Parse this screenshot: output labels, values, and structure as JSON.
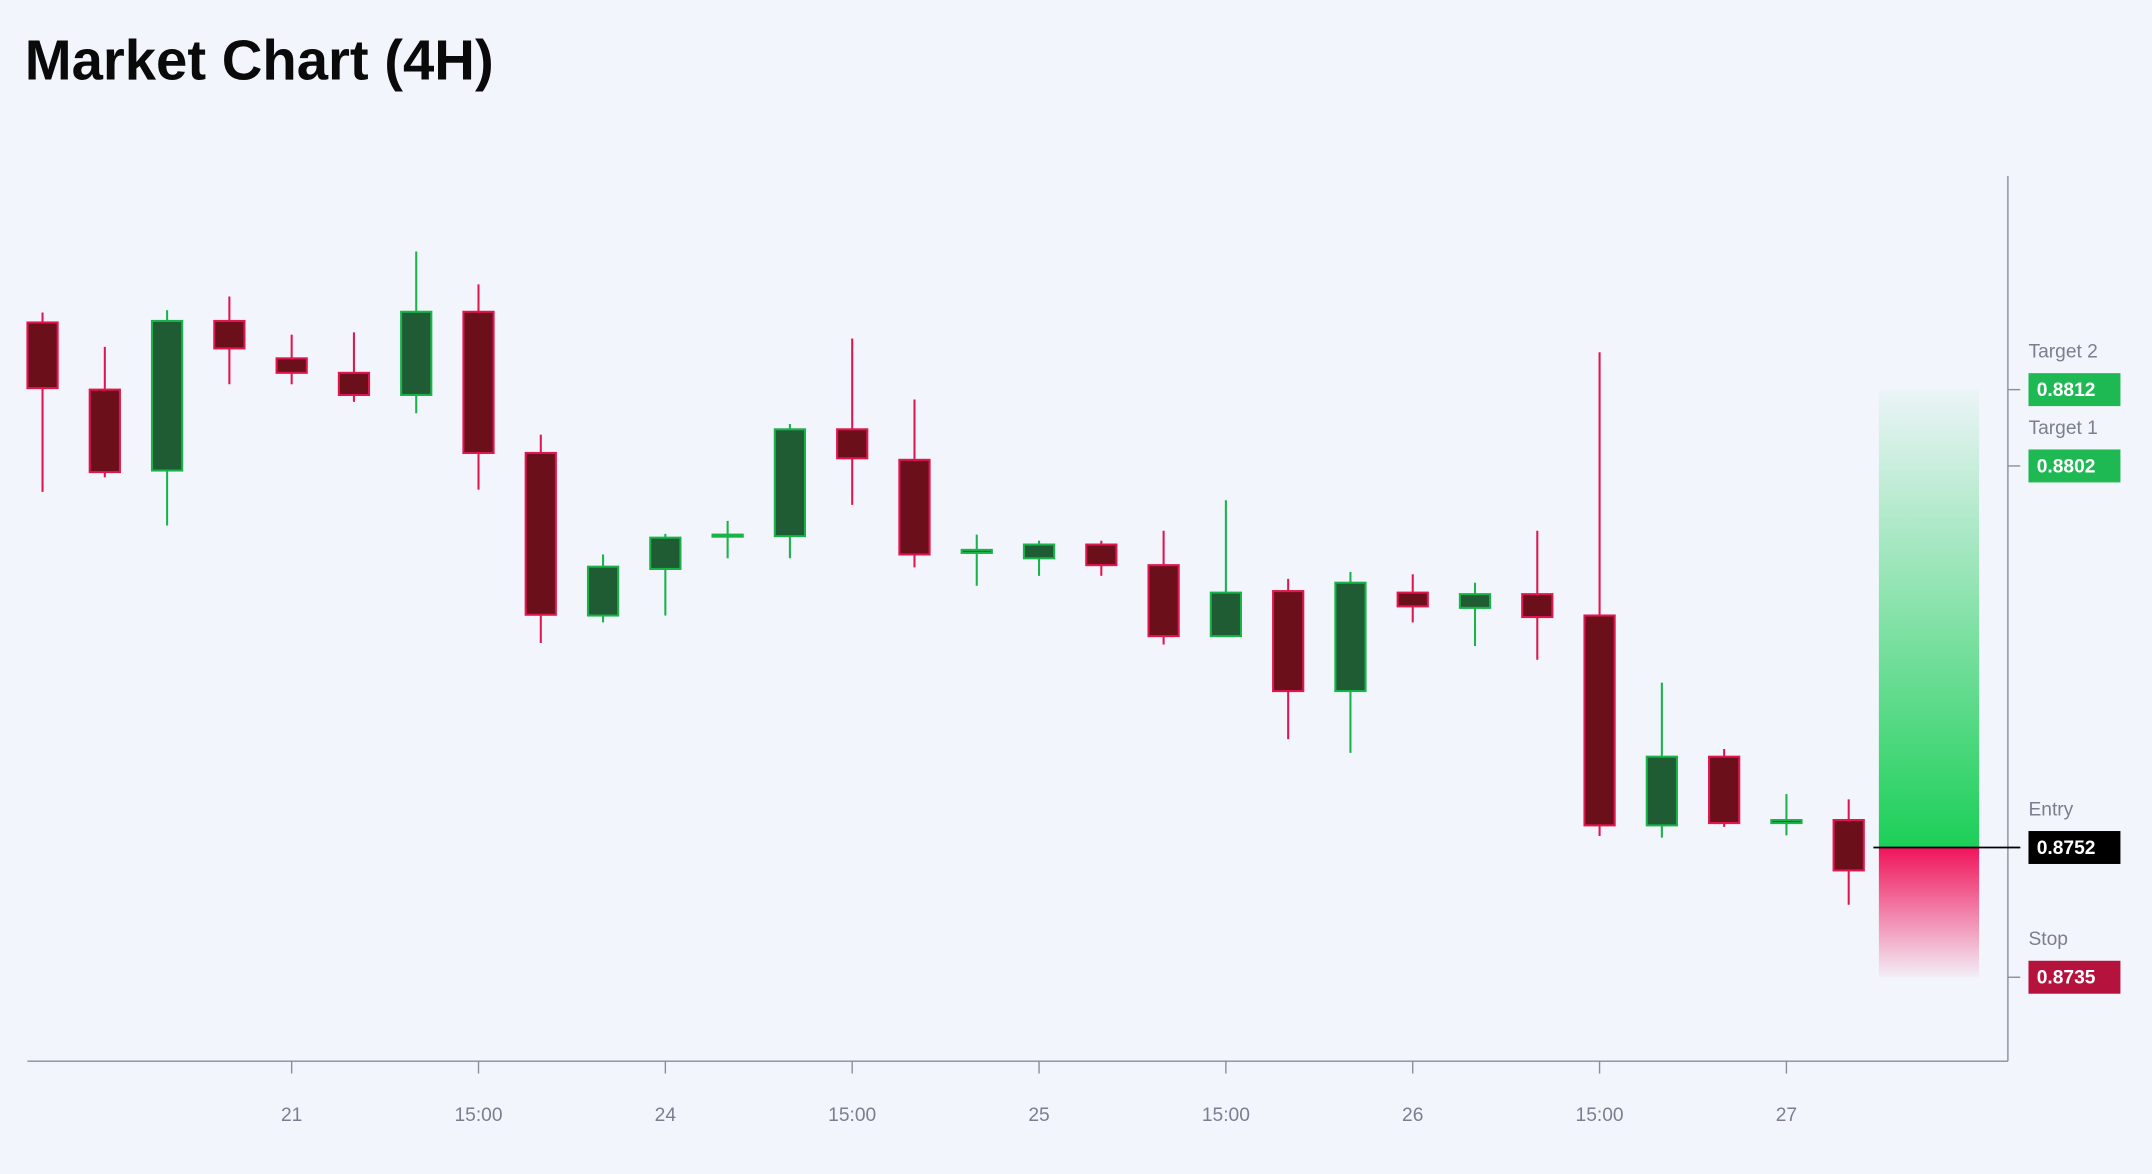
{
  "chart_data": {
    "type": "candlestick",
    "title": "Market Chart (4H)",
    "categories": [
      null,
      null,
      null,
      null,
      "21",
      null,
      null,
      "15:00",
      null,
      null,
      "24",
      null,
      null,
      "15:00",
      null,
      null,
      "25",
      null,
      null,
      "15:00",
      null,
      null,
      "26",
      null,
      null,
      "15:00",
      null,
      null,
      "27",
      null
    ],
    "open": [
      0.88208,
      0.8812,
      0.88014,
      0.8821,
      0.88161,
      0.88142,
      0.88113,
      0.88222,
      0.88037,
      0.87824,
      0.87885,
      0.87928,
      0.87928,
      0.88068,
      0.88028,
      0.87906,
      0.87899,
      0.87917,
      0.8789,
      0.87797,
      0.87856,
      0.87725,
      0.87854,
      0.87834,
      0.87852,
      0.87824,
      0.87549,
      0.87639,
      0.87552,
      0.87556
    ],
    "high": [
      0.88221,
      0.88176,
      0.88224,
      0.88242,
      0.88192,
      0.88195,
      0.88301,
      0.88258,
      0.88061,
      0.87904,
      0.87931,
      0.87948,
      0.88075,
      0.88187,
      0.88107,
      0.8793,
      0.87922,
      0.87922,
      0.87935,
      0.87975,
      0.87872,
      0.87881,
      0.87878,
      0.87867,
      0.87935,
      0.88169,
      0.87736,
      0.87649,
      0.8759,
      0.87583
    ],
    "low": [
      0.87986,
      0.88005,
      0.87942,
      0.88127,
      0.88127,
      0.88104,
      0.88089,
      0.87989,
      0.87788,
      0.87815,
      0.87824,
      0.87899,
      0.87899,
      0.87969,
      0.87887,
      0.87863,
      0.87876,
      0.87876,
      0.87786,
      0.87797,
      0.87662,
      0.87644,
      0.87815,
      0.87784,
      0.87766,
      0.87535,
      0.87533,
      0.87547,
      0.87536,
      0.87445
    ],
    "close": [
      0.88122,
      0.88012,
      0.8821,
      0.88174,
      0.88142,
      0.88113,
      0.88222,
      0.88037,
      0.87825,
      0.87888,
      0.87926,
      0.8793,
      0.88068,
      0.8803,
      0.87904,
      0.8791,
      0.87917,
      0.8789,
      0.87797,
      0.87854,
      0.87725,
      0.87867,
      0.87836,
      0.87852,
      0.87822,
      0.87549,
      0.87639,
      0.87552,
      0.87556,
      0.8749
    ],
    "up_color": "#19b34a",
    "up_fill": "#1f5c34",
    "down_color": "#e0174f",
    "down_fill": "#6b0f1a",
    "ylim": [
      0.8724,
      0.884
    ],
    "levels": [
      {
        "name": "Target 2",
        "value": 0.8812,
        "color": "#1fb954"
      },
      {
        "name": "Target 1",
        "value": 0.8802,
        "color": "#1fb954"
      },
      {
        "name": "Entry",
        "value": 0.8752,
        "color": "#000000"
      },
      {
        "name": "Stop",
        "value": 0.8735,
        "color": "#b5123e"
      }
    ]
  }
}
